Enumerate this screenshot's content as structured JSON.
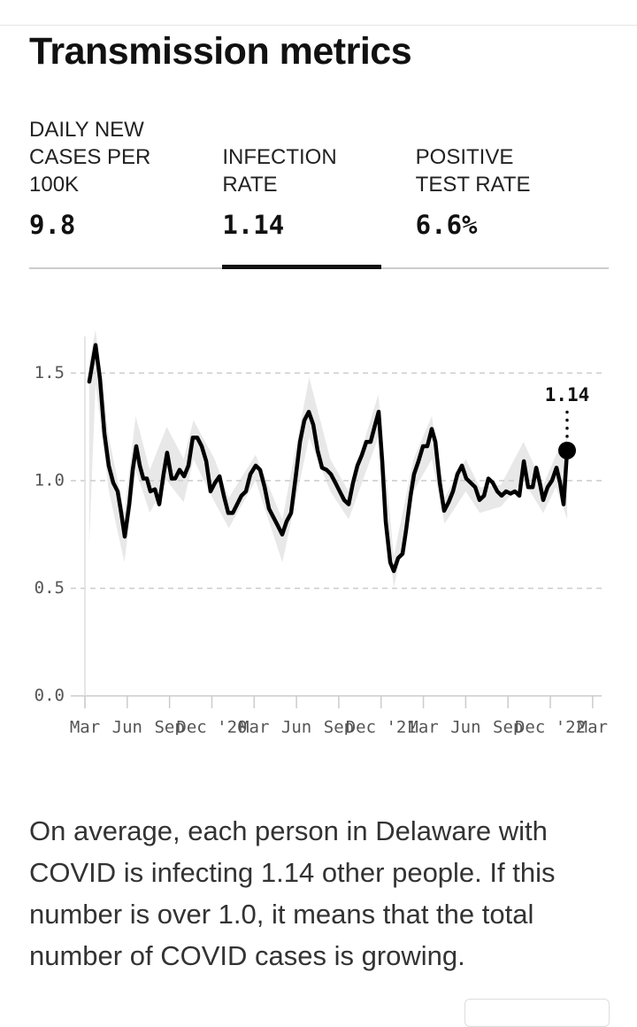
{
  "header": {
    "title": "Transmission metrics"
  },
  "tabs": [
    {
      "label": "DAILY NEW CASES PER 100K",
      "value": "9.8",
      "selected": false
    },
    {
      "label": "INFECTION RATE",
      "value": "1.14",
      "selected": true
    },
    {
      "label": "POSITIVE TEST RATE",
      "value": "6.6%",
      "selected": false
    }
  ],
  "chart_data": {
    "type": "line",
    "xlim": [
      0,
      36.2
    ],
    "xticks": [
      {
        "value": 0,
        "label": "Mar"
      },
      {
        "value": 3,
        "label": "Jun"
      },
      {
        "value": 6,
        "label": "Sep"
      },
      {
        "value": 9,
        "label": "Dec '20"
      },
      {
        "value": 12,
        "label": "Mar"
      },
      {
        "value": 15,
        "label": "Jun"
      },
      {
        "value": 18,
        "label": "Sep"
      },
      {
        "value": 21,
        "label": "Dec '21"
      },
      {
        "value": 24,
        "label": "Mar"
      },
      {
        "value": 27,
        "label": "Jun"
      },
      {
        "value": 30,
        "label": "Sep"
      },
      {
        "value": 33,
        "label": "Dec '22"
      },
      {
        "value": 36,
        "label": "Mar"
      }
    ],
    "ylim": [
      0,
      1.67
    ],
    "yticks": [
      {
        "value": 0,
        "label": "0.0"
      },
      {
        "value": 0.5,
        "label": "0.5"
      },
      {
        "value": 1,
        "label": "1.0"
      },
      {
        "value": 1.5,
        "label": "1.5"
      }
    ],
    "grid": true,
    "band": {
      "color": "#e8e8e8",
      "x": [
        0.3,
        0.75,
        1.7,
        2.8,
        3.6,
        4.6,
        5.8,
        7.0,
        7.7,
        9.2,
        10.2,
        12.1,
        14.0,
        15.9,
        17.4,
        18.7,
        20.8,
        21.9,
        23.3,
        24.6,
        25.5,
        27.0,
        28.0,
        29.5,
        31.1,
        32.5,
        33.4,
        34.2
      ],
      "lower": [
        0.7,
        1.45,
        0.95,
        0.62,
        1.05,
        0.85,
        1.0,
        0.9,
        1.1,
        0.9,
        0.78,
        1.0,
        0.62,
        1.2,
        0.95,
        0.82,
        1.2,
        0.5,
        0.95,
        1.1,
        0.8,
        0.95,
        0.85,
        0.88,
        1.0,
        0.85,
        0.97,
        0.82
      ],
      "upper": [
        1.55,
        1.7,
        1.2,
        0.85,
        1.3,
        1.05,
        1.25,
        1.1,
        1.28,
        1.1,
        0.92,
        1.12,
        0.82,
        1.48,
        1.1,
        0.95,
        1.4,
        0.65,
        1.1,
        1.3,
        0.92,
        1.1,
        0.97,
        0.98,
        1.18,
        0.98,
        1.12,
        1.2
      ]
    },
    "series": [
      {
        "color": "#000000",
        "x": [
          0.31,
          0.75,
          1.07,
          1.38,
          1.69,
          2.01,
          2.32,
          2.57,
          2.82,
          3.14,
          3.39,
          3.64,
          3.89,
          4.14,
          4.39,
          4.64,
          4.96,
          5.27,
          5.58,
          5.83,
          6.15,
          6.4,
          6.71,
          7.03,
          7.34,
          7.65,
          7.97,
          8.28,
          8.6,
          8.91,
          9.22,
          9.54,
          9.85,
          10.16,
          10.48,
          10.79,
          11.1,
          11.42,
          11.73,
          12.11,
          12.42,
          12.74,
          13.05,
          13.36,
          13.68,
          13.99,
          14.3,
          14.62,
          14.93,
          15.25,
          15.56,
          15.87,
          16.19,
          16.5,
          16.81,
          17.13,
          17.44,
          17.76,
          18.07,
          18.38,
          18.7,
          19.01,
          19.32,
          19.64,
          19.95,
          20.26,
          20.58,
          20.83,
          21.08,
          21.33,
          21.65,
          21.9,
          22.21,
          22.52,
          22.77,
          23.09,
          23.34,
          23.65,
          23.97,
          24.28,
          24.59,
          24.85,
          25.16,
          25.47,
          25.79,
          26.1,
          26.41,
          26.73,
          27.04,
          27.35,
          27.67,
          27.98,
          28.3,
          28.61,
          28.92,
          29.24,
          29.55,
          29.86,
          30.18,
          30.49,
          30.8,
          31.12,
          31.43,
          31.75,
          32.0,
          32.25,
          32.5,
          32.81,
          33.12,
          33.44,
          33.69,
          33.94,
          34.19
        ],
        "values": [
          1.46,
          1.63,
          1.47,
          1.22,
          1.07,
          0.99,
          0.95,
          0.85,
          0.74,
          0.89,
          1.05,
          1.16,
          1.07,
          1.01,
          1.01,
          0.95,
          0.96,
          0.89,
          1.03,
          1.13,
          1.01,
          1.01,
          1.05,
          1.02,
          1.07,
          1.2,
          1.2,
          1.16,
          1.09,
          0.95,
          0.99,
          1.02,
          0.93,
          0.85,
          0.85,
          0.89,
          0.93,
          0.95,
          1.03,
          1.07,
          1.05,
          0.97,
          0.87,
          0.83,
          0.79,
          0.75,
          0.81,
          0.85,
          1.01,
          1.18,
          1.28,
          1.32,
          1.26,
          1.14,
          1.06,
          1.05,
          1.03,
          0.99,
          0.95,
          0.91,
          0.89,
          0.99,
          1.07,
          1.12,
          1.18,
          1.18,
          1.26,
          1.32,
          1.09,
          0.81,
          0.62,
          0.58,
          0.64,
          0.66,
          0.77,
          0.93,
          1.03,
          1.09,
          1.16,
          1.16,
          1.24,
          1.18,
          0.99,
          0.86,
          0.9,
          0.95,
          1.03,
          1.07,
          1.01,
          0.99,
          0.97,
          0.91,
          0.93,
          1.01,
          0.99,
          0.95,
          0.93,
          0.95,
          0.94,
          0.95,
          0.93,
          1.09,
          0.97,
          0.97,
          1.06,
          0.99,
          0.91,
          0.97,
          1.0,
          1.06,
          0.99,
          0.89,
          1.14
        ]
      }
    ]
  },
  "description": "On average, each person in Delaware with COVID is infecting 1.14 other people. If this number is over 1.0, it means that the total number of COVID cases is growing."
}
